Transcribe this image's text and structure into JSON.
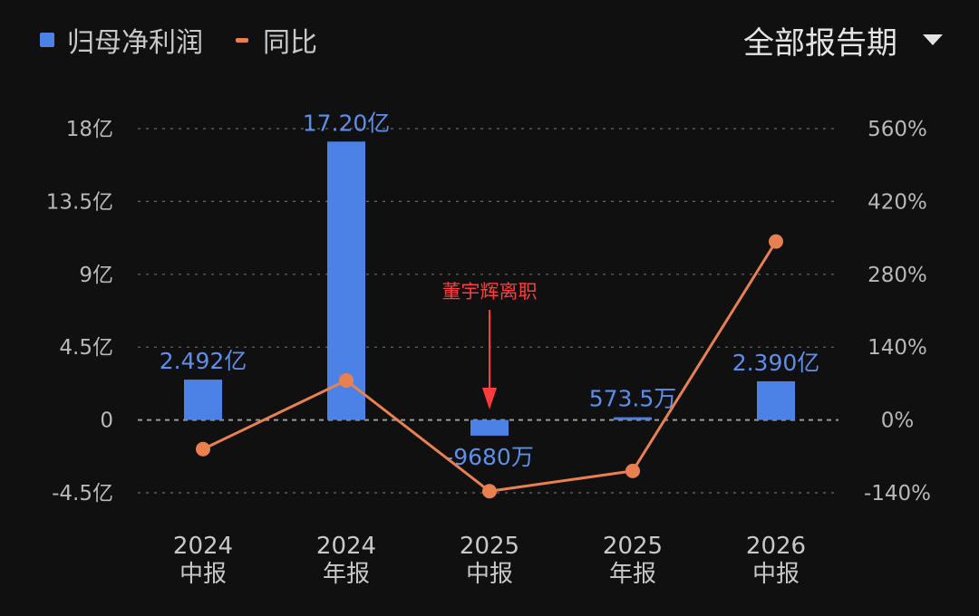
{
  "legend": {
    "bar_label": "归母净利润",
    "line_label": "同比"
  },
  "period_selector": {
    "label": "全部报告期",
    "icon": "caret-down-icon"
  },
  "colors": {
    "bar": "#4c82e6",
    "line": "#e8814f",
    "annotation": "#ff3b3b",
    "grid": "#6a6a6a",
    "background": "#101010"
  },
  "chart_data": {
    "type": "bar+line",
    "categories": [
      {
        "line1": "2024",
        "line2": "中报"
      },
      {
        "line1": "2024",
        "line2": "年报"
      },
      {
        "line1": "2025",
        "line2": "中报"
      },
      {
        "line1": "2025",
        "line2": "年报"
      },
      {
        "line1": "2026",
        "line2": "中报"
      }
    ],
    "series": [
      {
        "name": "归母净利润",
        "type": "bar",
        "axis": "left",
        "unit": "亿",
        "values": [
          2.492,
          17.2,
          -0.968,
          0.05735,
          2.39
        ],
        "labels": [
          "2.492亿",
          "17.20亿",
          "-9680万",
          "573.5万",
          "2.390亿"
        ]
      },
      {
        "name": "同比",
        "type": "line",
        "axis": "right",
        "unit": "%",
        "values": [
          -56,
          76,
          -137,
          -98,
          343
        ]
      }
    ],
    "left_axis": {
      "min": -4.5,
      "max": 18,
      "ticks": [
        -4.5,
        0,
        4.5,
        9,
        13.5,
        18
      ],
      "tick_labels": [
        "-4.5亿",
        "0",
        "4.5亿",
        "9亿",
        "13.5亿",
        "18亿"
      ]
    },
    "right_axis": {
      "min": -140,
      "max": 560,
      "ticks": [
        -140,
        0,
        140,
        280,
        420,
        560
      ],
      "tick_labels": [
        "-140%",
        "0%",
        "140%",
        "280%",
        "420%",
        "560%"
      ]
    },
    "grid": true,
    "legend_position": "top-left",
    "annotation": {
      "text": "董宇辉离职",
      "category_index": 2,
      "arrow": "down"
    }
  }
}
